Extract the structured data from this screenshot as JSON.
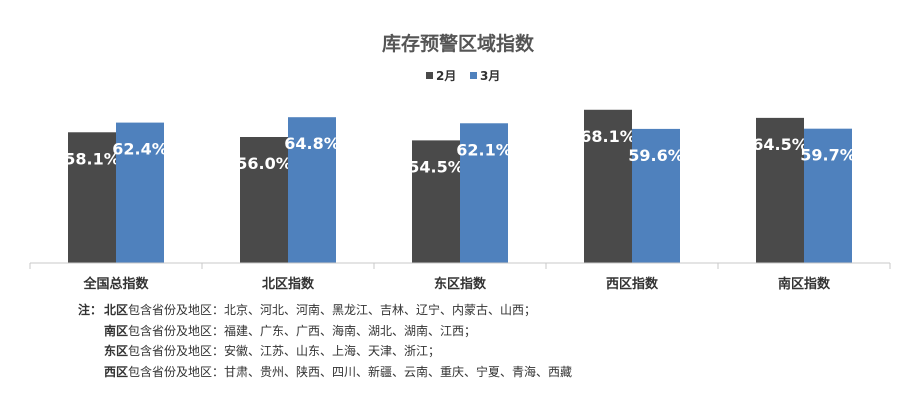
{
  "chart_data": {
    "type": "bar",
    "title": "库存预警区域指数",
    "categories": [
      "全国总指数",
      "北区指数",
      "东区指数",
      "西区指数",
      "南区指数"
    ],
    "series": [
      {
        "name": "2月",
        "values": [
          58.1,
          56.0,
          54.5,
          68.1,
          64.5
        ],
        "labels": [
          "58.1%",
          "56.0%",
          "54.5%",
          "68.1%",
          "64.5%"
        ]
      },
      {
        "name": "3月",
        "values": [
          62.4,
          64.8,
          62.1,
          59.6,
          59.7
        ],
        "labels": [
          "62.4%",
          "64.8%",
          "62.1%",
          "59.6%",
          "59.7%"
        ]
      }
    ],
    "colors": {
      "2月": "#4a4a4a",
      "3月": "#4f81bd"
    },
    "ylim": [
      0,
      72
    ],
    "legend_position": "top-center",
    "grid": false,
    "xlabel": "",
    "ylabel": ""
  },
  "notes": {
    "prefix": "注：",
    "lines": [
      {
        "region": "北区",
        "text": "包含省份及地区：北京、河北、河南、黑龙江、吉林、辽宁、内蒙古、山西；"
      },
      {
        "region": "南区",
        "text": "包含省份及地区：福建、广东、广西、海南、湖北、湖南、江西；"
      },
      {
        "region": "东区",
        "text": "包含省份及地区：安徽、江苏、山东、上海、天津、浙江；"
      },
      {
        "region": "西区",
        "text": "包含省份及地区：甘肃、贵州、陕西、四川、新疆、云南、重庆、宁夏、青海、西藏"
      }
    ]
  }
}
